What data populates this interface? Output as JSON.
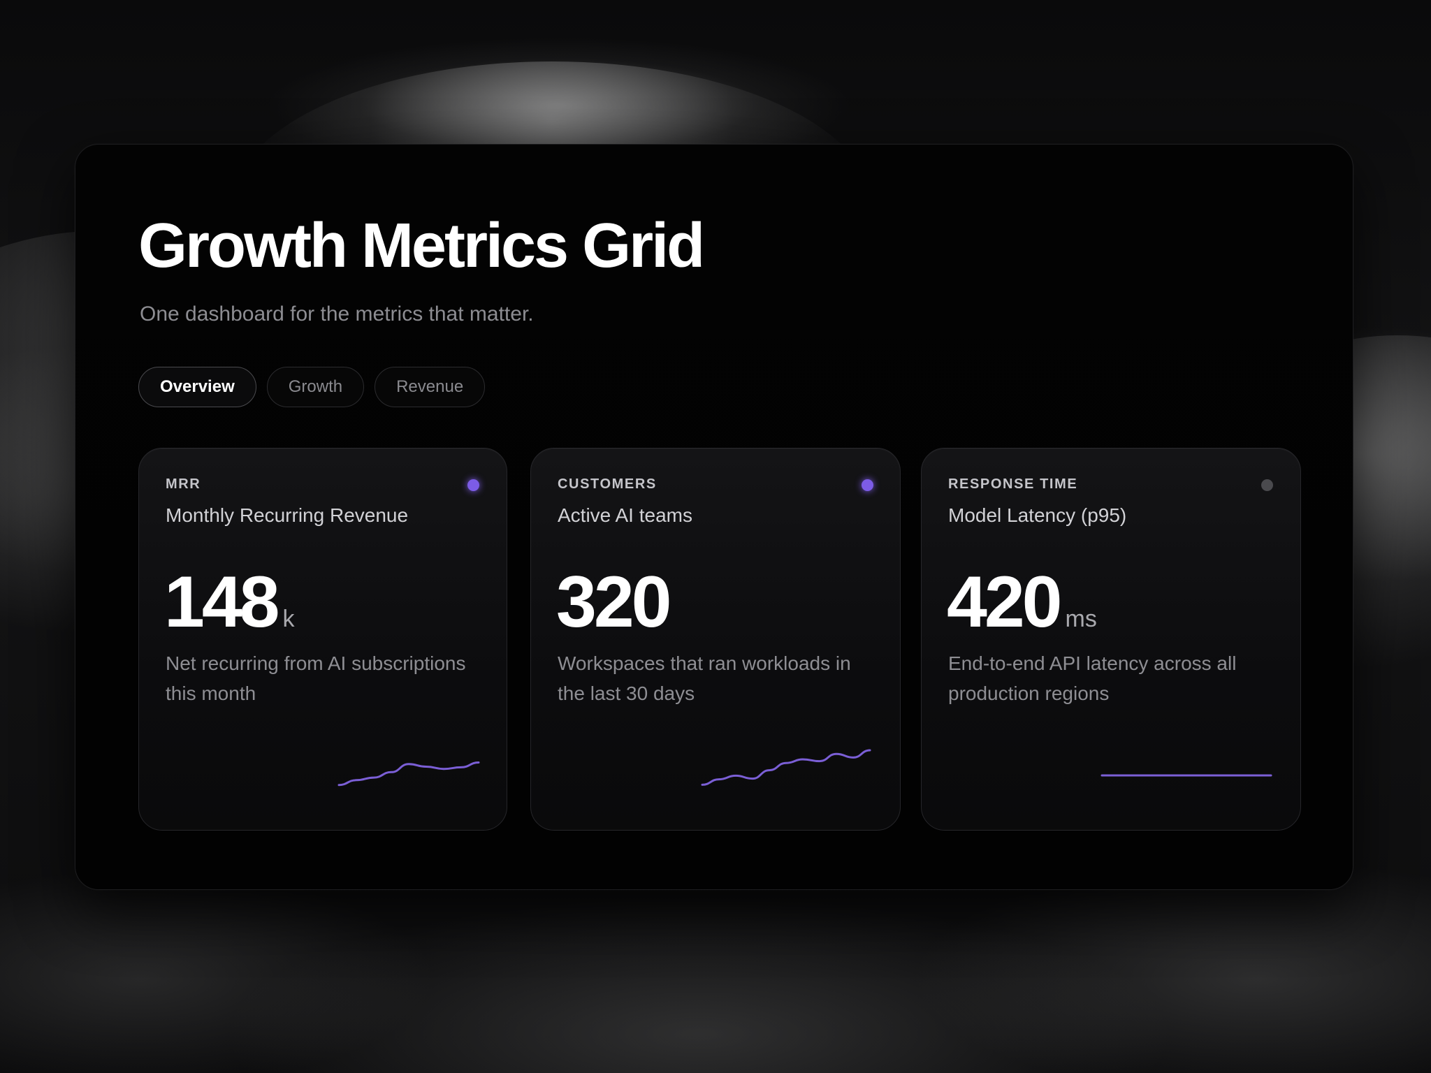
{
  "header": {
    "title": "Growth Metrics Grid",
    "subtitle": "One dashboard for the metrics that matter."
  },
  "tabs": [
    {
      "label": "Overview",
      "active": true
    },
    {
      "label": "Growth",
      "active": false
    },
    {
      "label": "Revenue",
      "active": false
    }
  ],
  "colors": {
    "accent": "#7c5ce6",
    "dot_inactive": "#4a4a4e",
    "sparkline": "#7b5fd6"
  },
  "cards": [
    {
      "label": "MRR",
      "name": "Monthly Recurring Revenue",
      "value": "148",
      "unit": "k",
      "description": "Net recurring from AI subscriptions this month",
      "status": "active",
      "sparkline": [
        0.05,
        0.2,
        0.28,
        0.45,
        0.7,
        0.62,
        0.55,
        0.6,
        0.75
      ]
    },
    {
      "label": "CUSTOMERS",
      "name": "Active AI teams",
      "value": "320",
      "unit": "",
      "description": "Workspaces that ran workloads in the last 30 days",
      "status": "active",
      "sparkline": [
        0.05,
        0.2,
        0.3,
        0.22,
        0.45,
        0.65,
        0.75,
        0.7,
        0.9,
        0.8,
        1.0
      ]
    },
    {
      "label": "RESPONSE TIME",
      "name": "Model Latency (p95)",
      "value": "420",
      "unit": "ms",
      "description": "End-to-end API latency across all production regions",
      "status": "inactive",
      "sparkline": [
        0.5,
        0.5
      ]
    }
  ]
}
